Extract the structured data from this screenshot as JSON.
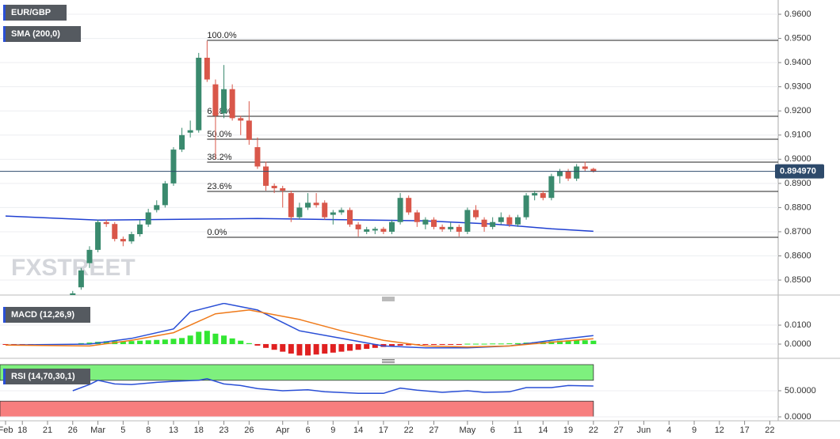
{
  "watermark": "FXSTREET",
  "chart_data": [
    {
      "type": "candlestick",
      "name": "EUR/GBP",
      "ylim": [
        0.8438,
        0.9659
      ],
      "yticks": [
        {
          "value": 0.85,
          "label": "0.8500"
        },
        {
          "value": 0.86,
          "label": "0.8600"
        },
        {
          "value": 0.87,
          "label": "0.8700"
        },
        {
          "value": 0.88,
          "label": "0.8800"
        },
        {
          "value": 0.89,
          "label": "0.8900"
        },
        {
          "value": 0.9,
          "label": "0.9000"
        },
        {
          "value": 0.91,
          "label": "0.9100"
        },
        {
          "value": 0.92,
          "label": "0.9200"
        },
        {
          "value": 0.93,
          "label": "0.9300"
        },
        {
          "value": 0.94,
          "label": "0.9400"
        },
        {
          "value": 0.95,
          "label": "0.9500"
        },
        {
          "value": 0.96,
          "label": "0.9600"
        }
      ],
      "xlim": [
        -0.66,
        92
      ],
      "xticks": [
        {
          "value": 0,
          "label": "Feb"
        },
        {
          "value": 2,
          "label": "18"
        },
        {
          "value": 5,
          "label": "21"
        },
        {
          "value": 8,
          "label": "26"
        },
        {
          "value": 11,
          "label": "Mar"
        },
        {
          "value": 14,
          "label": "5"
        },
        {
          "value": 17,
          "label": "8"
        },
        {
          "value": 20,
          "label": "13"
        },
        {
          "value": 23,
          "label": "18"
        },
        {
          "value": 26,
          "label": "23"
        },
        {
          "value": 29,
          "label": "26"
        },
        {
          "value": 33,
          "label": "Apr"
        },
        {
          "value": 36,
          "label": "6"
        },
        {
          "value": 39,
          "label": "9"
        },
        {
          "value": 42,
          "label": "14"
        },
        {
          "value": 45,
          "label": "17"
        },
        {
          "value": 48,
          "label": "22"
        },
        {
          "value": 51,
          "label": "27"
        },
        {
          "value": 55,
          "label": "May"
        },
        {
          "value": 58,
          "label": "6"
        },
        {
          "value": 61,
          "label": "11"
        },
        {
          "value": 64,
          "label": "14"
        },
        {
          "value": 67,
          "label": "19"
        },
        {
          "value": 70,
          "label": "22"
        },
        {
          "value": 73,
          "label": "27"
        },
        {
          "value": 76,
          "label": "Jun"
        },
        {
          "value": 79,
          "label": "4"
        },
        {
          "value": 82,
          "label": "9"
        },
        {
          "value": 85,
          "label": "12"
        },
        {
          "value": 88,
          "label": "17"
        },
        {
          "value": 91,
          "label": "22"
        }
      ],
      "grid": true,
      "up_color": "#3a8a6e",
      "down_color": "#d9574a",
      "candles": {
        "x": [
          8,
          9,
          10,
          11,
          12,
          13,
          14,
          15,
          16,
          17,
          18,
          19,
          20,
          21,
          22,
          23,
          24,
          25,
          26,
          27,
          28,
          29,
          30,
          31,
          32,
          33,
          34,
          35,
          36,
          37,
          38,
          39,
          40,
          41,
          42,
          43,
          44,
          45,
          46,
          47,
          48,
          49,
          50,
          51,
          52,
          53,
          54,
          55,
          56,
          57,
          58,
          59,
          60,
          61,
          62,
          63,
          64,
          65,
          66,
          67,
          68,
          69,
          70
        ],
        "open": [
          0.843,
          0.847,
          0.857,
          0.8625,
          0.874,
          0.8732,
          0.867,
          0.866,
          0.869,
          0.873,
          0.879,
          0.881,
          0.89,
          0.904,
          0.911,
          0.912,
          0.942,
          0.931,
          0.919,
          0.929,
          0.917,
          0.916,
          0.905,
          0.897,
          0.889,
          0.888,
          0.886,
          0.876,
          0.88,
          0.882,
          0.882,
          0.877,
          0.878,
          0.879,
          0.873,
          0.87,
          0.8705,
          0.8712,
          0.87,
          0.874,
          0.884,
          0.878,
          0.873,
          0.875,
          0.872,
          0.871,
          0.872,
          0.87,
          0.879,
          0.875,
          0.872,
          0.874,
          0.876,
          0.873,
          0.876,
          0.885,
          0.886,
          0.884,
          0.893,
          0.895,
          0.892,
          0.897,
          0.896
        ],
        "high": [
          0.8455,
          0.855,
          0.864,
          0.875,
          0.875,
          0.874,
          0.868,
          0.87,
          0.875,
          0.8795,
          0.883,
          0.891,
          0.905,
          0.913,
          0.916,
          0.944,
          0.949,
          0.933,
          0.939,
          0.931,
          0.918,
          0.924,
          0.909,
          0.899,
          0.89,
          0.889,
          0.887,
          0.882,
          0.886,
          0.886,
          0.883,
          0.879,
          0.88,
          0.88,
          0.874,
          0.872,
          0.872,
          0.872,
          0.875,
          0.886,
          0.885,
          0.879,
          0.876,
          0.876,
          0.873,
          0.874,
          0.873,
          0.88,
          0.881,
          0.876,
          0.876,
          0.878,
          0.877,
          0.877,
          0.886,
          0.887,
          0.887,
          0.894,
          0.896,
          0.896,
          0.898,
          0.899,
          0.8965
        ],
        "low": [
          0.842,
          0.846,
          0.855,
          0.8615,
          0.872,
          0.866,
          0.864,
          0.865,
          0.868,
          0.872,
          0.878,
          0.88,
          0.889,
          0.903,
          0.909,
          0.911,
          0.932,
          0.9,
          0.917,
          0.916,
          0.91,
          0.906,
          0.896,
          0.887,
          0.886,
          0.88,
          0.874,
          0.875,
          0.879,
          0.88,
          0.875,
          0.873,
          0.877,
          0.872,
          0.868,
          0.869,
          0.869,
          0.869,
          0.869,
          0.873,
          0.877,
          0.872,
          0.871,
          0.871,
          0.87,
          0.87,
          0.868,
          0.869,
          0.875,
          0.87,
          0.871,
          0.873,
          0.872,
          0.872,
          0.875,
          0.883,
          0.883,
          0.883,
          0.89,
          0.891,
          0.891,
          0.895,
          0.8945
        ],
        "close": [
          0.8445,
          0.854,
          0.8625,
          0.874,
          0.8732,
          0.867,
          0.866,
          0.869,
          0.873,
          0.878,
          0.881,
          0.89,
          0.904,
          0.91,
          0.912,
          0.942,
          0.933,
          0.918,
          0.929,
          0.917,
          0.916,
          0.908,
          0.897,
          0.889,
          0.888,
          0.887,
          0.876,
          0.88,
          0.882,
          0.881,
          0.876,
          0.878,
          0.879,
          0.873,
          0.871,
          0.871,
          0.8712,
          0.87,
          0.874,
          0.884,
          0.878,
          0.874,
          0.875,
          0.872,
          0.871,
          0.872,
          0.87,
          0.879,
          0.876,
          0.872,
          0.874,
          0.876,
          0.873,
          0.876,
          0.885,
          0.886,
          0.884,
          0.893,
          0.895,
          0.892,
          0.897,
          0.896,
          0.895
        ]
      },
      "sma": {
        "name": "SMA (200,0)",
        "color": "#1f3fd1",
        "x": [
          0,
          11,
          22,
          30,
          40,
          50,
          58,
          65,
          70
        ],
        "values": [
          0.8765,
          0.8748,
          0.8752,
          0.8755,
          0.875,
          0.8745,
          0.8732,
          0.8712,
          0.8702
        ]
      },
      "fib_levels": [
        {
          "label": "100.0%",
          "price": 0.9492
        },
        {
          "label": "61.8%",
          "price": 0.9178
        },
        {
          "label": "50.0%",
          "price": 0.9083
        },
        {
          "label": "38.2%",
          "price": 0.8988
        },
        {
          "label": "23.6%",
          "price": 0.8867
        },
        {
          "label": "0.0%",
          "price": 0.8677
        }
      ],
      "fib_start": 24,
      "last_price": {
        "value": 0.89497,
        "label": "0.894970"
      }
    },
    {
      "type": "macd",
      "name": "MACD (12,26,9)",
      "ylim": [
        -0.0075,
        0.0217
      ],
      "yticks": [
        {
          "value": 0,
          "label": "0.0000"
        },
        {
          "value": 0.01,
          "label": "0.0100"
        }
      ],
      "histogram": {
        "pos_color": "#33e633",
        "neg_color": "#e02020",
        "x": [
          0,
          1,
          2,
          3,
          4,
          5,
          6,
          7,
          8,
          9,
          10,
          11,
          12,
          13,
          14,
          15,
          16,
          17,
          18,
          19,
          20,
          21,
          22,
          23,
          24,
          25,
          26,
          27,
          28,
          29,
          30,
          31,
          32,
          33,
          34,
          35,
          36,
          37,
          38,
          39,
          40,
          41,
          42,
          43,
          44,
          45,
          46,
          47,
          48,
          49,
          50,
          51,
          52,
          53,
          54,
          55,
          56,
          57,
          58,
          59,
          60,
          61,
          62,
          63,
          64,
          65,
          66,
          67,
          68,
          69,
          70
        ],
        "values": [
          -0.0003,
          -0.0003,
          -0.0003,
          -0.0003,
          -0.0003,
          -0.0003,
          -0.0003,
          -0.0002,
          0.0002,
          0.0005,
          0.0008,
          0.0012,
          0.0015,
          0.0016,
          0.0015,
          0.0016,
          0.0018,
          0.002,
          0.0022,
          0.0024,
          0.0028,
          0.0032,
          0.0045,
          0.0065,
          0.007,
          0.0055,
          0.0045,
          0.003,
          0.0018,
          0.0005,
          -0.0008,
          -0.002,
          -0.003,
          -0.004,
          -0.005,
          -0.006,
          -0.006,
          -0.0055,
          -0.005,
          -0.0045,
          -0.004,
          -0.0035,
          -0.003,
          -0.0025,
          -0.002,
          -0.0015,
          -0.001,
          -0.0008,
          -0.0006,
          -0.0005,
          -0.0004,
          -0.0004,
          -0.0004,
          -0.0003,
          -0.0003,
          0.0002,
          0.0002,
          0.0002,
          0.0003,
          0.0003,
          0.0004,
          0.0005,
          0.0008,
          0.001,
          0.0012,
          0.0015,
          0.0018,
          0.002,
          0.002,
          0.002,
          0.0018
        ]
      },
      "series": [
        {
          "color": "#2a4fd6",
          "x": [
            0,
            10,
            15,
            20,
            22,
            26,
            30,
            35,
            40,
            45,
            50,
            55,
            60,
            65,
            70
          ],
          "values": [
            -0.0005,
            0,
            0.003,
            0.008,
            0.017,
            0.0215,
            0.018,
            0.007,
            0.003,
            -0.001,
            -0.002,
            -0.002,
            -0.001,
            0.002,
            0.0045
          ]
        },
        {
          "color": "#ef7a1a",
          "x": [
            0,
            10,
            15,
            20,
            25,
            29,
            35,
            40,
            45,
            50,
            55,
            60,
            65,
            70
          ],
          "values": [
            -0.0005,
            -0.001,
            0.002,
            0.006,
            0.016,
            0.018,
            0.013,
            0.007,
            0.002,
            -0.001,
            -0.0015,
            -0.001,
            0.001,
            0.0028
          ]
        }
      ]
    },
    {
      "type": "line",
      "name": "RSI (14,70,30,1)",
      "ylim": [
        -7.6,
        101.5
      ],
      "yticks": [
        {
          "value": 0,
          "label": "0.0000"
        },
        {
          "value": 50,
          "label": "50.0000"
        }
      ],
      "bands": [
        {
          "from": 70,
          "to": 100,
          "color": "#7ef07e"
        },
        {
          "from": 0,
          "to": 30,
          "color": "#f77e7e"
        }
      ],
      "band_end": 70,
      "series": [
        {
          "color": "#2a4fd6",
          "x": [
            8,
            10,
            11,
            13,
            15,
            18,
            20,
            23,
            24,
            26,
            28,
            30,
            33,
            36,
            38,
            42,
            45,
            47,
            49,
            52,
            55,
            57,
            60,
            62,
            65,
            67,
            70
          ],
          "values": [
            50,
            62,
            70,
            63,
            62,
            66,
            68,
            70,
            73,
            63,
            60,
            54,
            50,
            52,
            48,
            45,
            45,
            55,
            51,
            47,
            50,
            47,
            48,
            56,
            56,
            60,
            59
          ]
        }
      ]
    }
  ]
}
